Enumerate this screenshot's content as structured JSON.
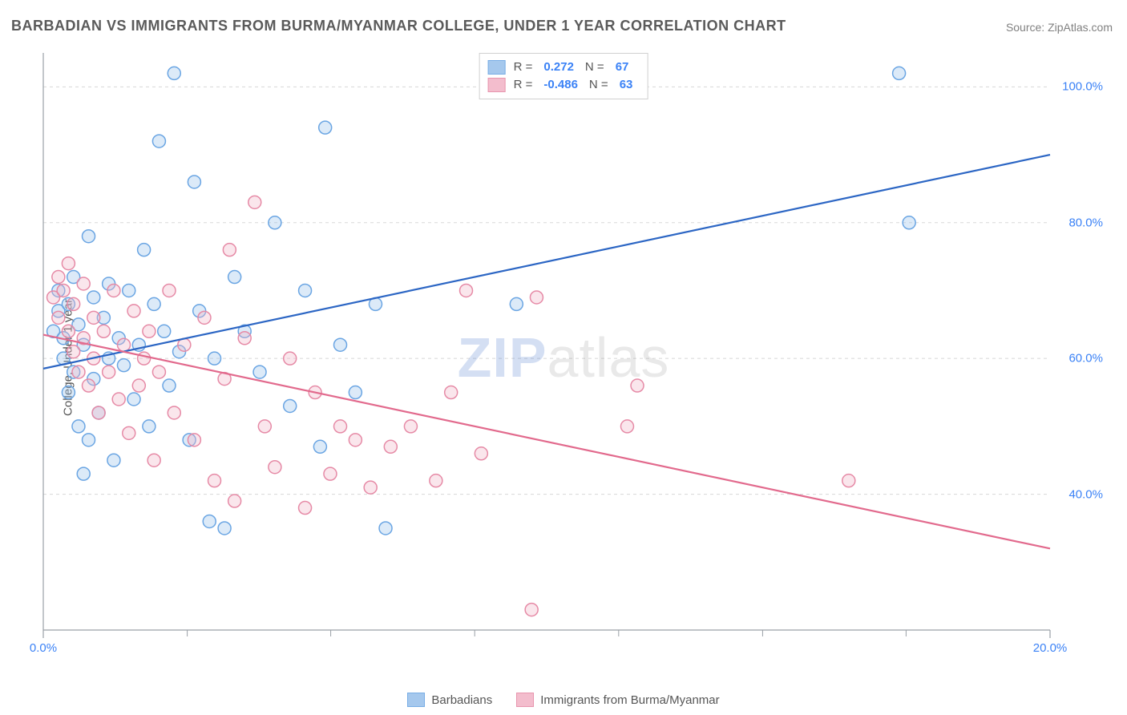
{
  "title": "BARBADIAN VS IMMIGRANTS FROM BURMA/MYANMAR COLLEGE, UNDER 1 YEAR CORRELATION CHART",
  "source": "Source: ZipAtlas.com",
  "ylabel": "College, Under 1 year",
  "watermark_a": "ZIP",
  "watermark_b": "atlas",
  "chart": {
    "type": "scatter-with-regression",
    "xlim": [
      0,
      20
    ],
    "ylim": [
      20,
      105
    ],
    "x_ticks": [
      0,
      20
    ],
    "x_tick_labels": [
      "0.0%",
      "20.0%"
    ],
    "y_ticks": [
      40,
      60,
      80,
      100
    ],
    "y_tick_labels": [
      "40.0%",
      "60.0%",
      "80.0%",
      "100.0%"
    ],
    "x_minor_positions": [
      2.86,
      5.71,
      8.57,
      11.43,
      14.29,
      17.14
    ],
    "axis_color": "#9aa0a6",
    "grid_color": "#d8d8d8",
    "tick_label_color": "#3b82f6",
    "background_color": "#ffffff",
    "marker_radius": 8,
    "marker_stroke_width": 1.5,
    "marker_fill_opacity": 0.35,
    "line_width": 2.2,
    "series": [
      {
        "key": "barbadians",
        "label": "Barbadians",
        "r": "0.272",
        "n": "67",
        "color_stroke": "#6aa5e3",
        "color_fill": "#9cc3ec",
        "line_color": "#2c66c4",
        "regression": {
          "x1": 0,
          "y1": 58.5,
          "x2": 20,
          "y2": 90.0
        },
        "points": [
          [
            0.2,
            64
          ],
          [
            0.3,
            67
          ],
          [
            0.3,
            70
          ],
          [
            0.4,
            60
          ],
          [
            0.4,
            63
          ],
          [
            0.5,
            55
          ],
          [
            0.5,
            68
          ],
          [
            0.6,
            58
          ],
          [
            0.6,
            72
          ],
          [
            0.7,
            50
          ],
          [
            0.7,
            65
          ],
          [
            0.8,
            43
          ],
          [
            0.8,
            62
          ],
          [
            0.9,
            48
          ],
          [
            0.9,
            78
          ],
          [
            1.0,
            57
          ],
          [
            1.0,
            69
          ],
          [
            1.1,
            52
          ],
          [
            1.2,
            66
          ],
          [
            1.3,
            60
          ],
          [
            1.3,
            71
          ],
          [
            1.4,
            45
          ],
          [
            1.5,
            63
          ],
          [
            1.6,
            59
          ],
          [
            1.7,
            70
          ],
          [
            1.8,
            54
          ],
          [
            1.9,
            62
          ],
          [
            2.0,
            76
          ],
          [
            2.1,
            50
          ],
          [
            2.2,
            68
          ],
          [
            2.3,
            92
          ],
          [
            2.4,
            64
          ],
          [
            2.5,
            56
          ],
          [
            2.6,
            102
          ],
          [
            2.7,
            61
          ],
          [
            2.9,
            48
          ],
          [
            3.0,
            86
          ],
          [
            3.1,
            67
          ],
          [
            3.3,
            36
          ],
          [
            3.4,
            60
          ],
          [
            3.6,
            35
          ],
          [
            3.8,
            72
          ],
          [
            4.0,
            64
          ],
          [
            4.3,
            58
          ],
          [
            4.6,
            80
          ],
          [
            4.9,
            53
          ],
          [
            5.2,
            70
          ],
          [
            5.5,
            47
          ],
          [
            5.6,
            94
          ],
          [
            5.9,
            62
          ],
          [
            6.2,
            55
          ],
          [
            6.6,
            68
          ],
          [
            6.8,
            35
          ],
          [
            9.4,
            68
          ],
          [
            17.0,
            102
          ],
          [
            17.2,
            80
          ]
        ]
      },
      {
        "key": "burma",
        "label": "Immigrants from Burma/Myanmar",
        "r": "-0.486",
        "n": "63",
        "color_stroke": "#e68aa6",
        "color_fill": "#f2b6c8",
        "line_color": "#e26a8d",
        "regression": {
          "x1": 0,
          "y1": 63.5,
          "x2": 20,
          "y2": 32.0
        },
        "points": [
          [
            0.2,
            69
          ],
          [
            0.3,
            72
          ],
          [
            0.3,
            66
          ],
          [
            0.4,
            70
          ],
          [
            0.5,
            64
          ],
          [
            0.5,
            74
          ],
          [
            0.6,
            61
          ],
          [
            0.6,
            68
          ],
          [
            0.7,
            58
          ],
          [
            0.8,
            63
          ],
          [
            0.8,
            71
          ],
          [
            0.9,
            56
          ],
          [
            1.0,
            66
          ],
          [
            1.0,
            60
          ],
          [
            1.1,
            52
          ],
          [
            1.2,
            64
          ],
          [
            1.3,
            58
          ],
          [
            1.4,
            70
          ],
          [
            1.5,
            54
          ],
          [
            1.6,
            62
          ],
          [
            1.7,
            49
          ],
          [
            1.8,
            67
          ],
          [
            1.9,
            56
          ],
          [
            2.0,
            60
          ],
          [
            2.1,
            64
          ],
          [
            2.2,
            45
          ],
          [
            2.3,
            58
          ],
          [
            2.5,
            70
          ],
          [
            2.6,
            52
          ],
          [
            2.8,
            62
          ],
          [
            3.0,
            48
          ],
          [
            3.2,
            66
          ],
          [
            3.4,
            42
          ],
          [
            3.6,
            57
          ],
          [
            3.7,
            76
          ],
          [
            3.8,
            39
          ],
          [
            4.0,
            63
          ],
          [
            4.2,
            83
          ],
          [
            4.4,
            50
          ],
          [
            4.6,
            44
          ],
          [
            4.9,
            60
          ],
          [
            5.2,
            38
          ],
          [
            5.4,
            55
          ],
          [
            5.7,
            43
          ],
          [
            5.9,
            50
          ],
          [
            6.2,
            48
          ],
          [
            6.5,
            41
          ],
          [
            6.9,
            47
          ],
          [
            7.3,
            50
          ],
          [
            7.8,
            42
          ],
          [
            8.1,
            55
          ],
          [
            8.4,
            70
          ],
          [
            8.7,
            46
          ],
          [
            9.7,
            23
          ],
          [
            9.8,
            69
          ],
          [
            11.6,
            50
          ],
          [
            11.8,
            56
          ],
          [
            16.0,
            42
          ]
        ]
      }
    ]
  },
  "legend_top": {
    "r_label": "R =",
    "n_label": "N ="
  }
}
